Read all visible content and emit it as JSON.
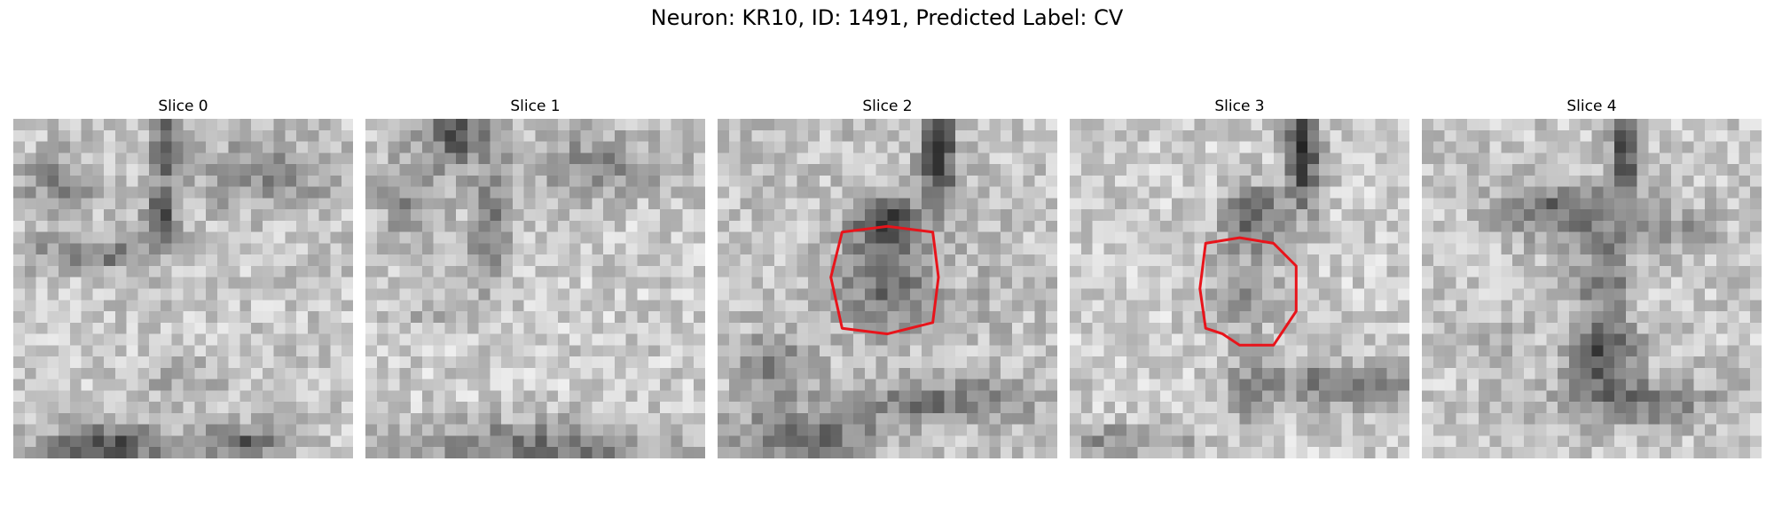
{
  "figure": {
    "title": "Neuron: KR10, ID: 1491, Predicted Label: CV"
  },
  "colors": {
    "outline": "#e8141b",
    "background": "#ffffff"
  },
  "panels": [
    {
      "title": "Slice 0",
      "grid": 30,
      "outline": [],
      "blobs": [
        [
          13.5,
          2,
          1.2,
          4,
          -0.45
        ],
        [
          13,
          9,
          1.5,
          2.2,
          -0.45
        ],
        [
          7,
          12,
          6,
          1.5,
          -0.3
        ],
        [
          4,
          6,
          3,
          3,
          -0.25
        ],
        [
          22,
          5,
          6,
          3,
          -0.25
        ],
        [
          8,
          29,
          5,
          2,
          -0.5
        ],
        [
          20,
          28.5,
          4,
          1.5,
          -0.4
        ],
        [
          15,
          23,
          3,
          2,
          -0.15
        ]
      ],
      "base": 0.78,
      "seed": 11
    },
    {
      "title": "Slice 1",
      "grid": 30,
      "outline": [],
      "blobs": [
        [
          8,
          1,
          3,
          3,
          -0.45
        ],
        [
          11,
          10,
          1.6,
          5,
          -0.35
        ],
        [
          4,
          7,
          3,
          4,
          -0.25
        ],
        [
          20,
          4,
          7,
          3,
          -0.25
        ],
        [
          15,
          29,
          12,
          2.2,
          -0.35
        ],
        [
          5,
          17,
          3,
          2,
          -0.1
        ]
      ],
      "base": 0.8,
      "seed": 23
    },
    {
      "title": "Slice 2",
      "grid": 30,
      "outline": [
        [
          11,
          10
        ],
        [
          15,
          9.5
        ],
        [
          19,
          10
        ],
        [
          19.5,
          14
        ],
        [
          19,
          18
        ],
        [
          15,
          19
        ],
        [
          11,
          18.5
        ],
        [
          10,
          14
        ]
      ],
      "blobs": [
        [
          19.5,
          3,
          1.4,
          4.5,
          -0.6
        ],
        [
          15,
          9,
          3,
          2,
          -0.4
        ],
        [
          15,
          14,
          4,
          4.5,
          -0.35
        ],
        [
          5,
          22,
          3,
          3,
          -0.25
        ],
        [
          20,
          25,
          8,
          2,
          -0.3
        ],
        [
          8,
          28,
          6,
          2,
          -0.35
        ],
        [
          24,
          15,
          2,
          4,
          -0.05
        ]
      ],
      "base": 0.76,
      "seed": 37
    },
    {
      "title": "Slice 3",
      "grid": 30,
      "outline": [
        [
          12,
          11
        ],
        [
          15,
          10.5
        ],
        [
          18,
          11
        ],
        [
          20,
          13
        ],
        [
          20,
          17
        ],
        [
          18,
          20
        ],
        [
          15,
          20
        ],
        [
          13.5,
          19
        ],
        [
          12,
          18.5
        ],
        [
          11.5,
          15
        ]
      ],
      "blobs": [
        [
          20.5,
          3,
          1.5,
          5,
          -0.6
        ],
        [
          16,
          8.5,
          2.5,
          2.5,
          -0.45
        ],
        [
          15.5,
          15,
          3.5,
          4,
          -0.2
        ],
        [
          24,
          23.5,
          6,
          2,
          -0.35
        ],
        [
          16,
          24,
          2,
          3,
          -0.25
        ],
        [
          5,
          28.5,
          6,
          1.5,
          -0.25
        ],
        [
          8,
          14,
          3,
          3,
          0.05
        ]
      ],
      "base": 0.8,
      "seed": 53
    },
    {
      "title": "Slice 4",
      "grid": 30,
      "outline": [],
      "blobs": [
        [
          18,
          3,
          1.5,
          5,
          -0.45
        ],
        [
          12,
          8,
          5,
          2.5,
          -0.35
        ],
        [
          16,
          14,
          2.5,
          4,
          -0.3
        ],
        [
          16,
          21,
          3,
          3,
          -0.45
        ],
        [
          19,
          25,
          7,
          2,
          -0.3
        ],
        [
          22,
          10,
          4,
          2,
          -0.2
        ],
        [
          6,
          20,
          3,
          3,
          -0.1
        ]
      ],
      "base": 0.78,
      "seed": 71
    }
  ]
}
